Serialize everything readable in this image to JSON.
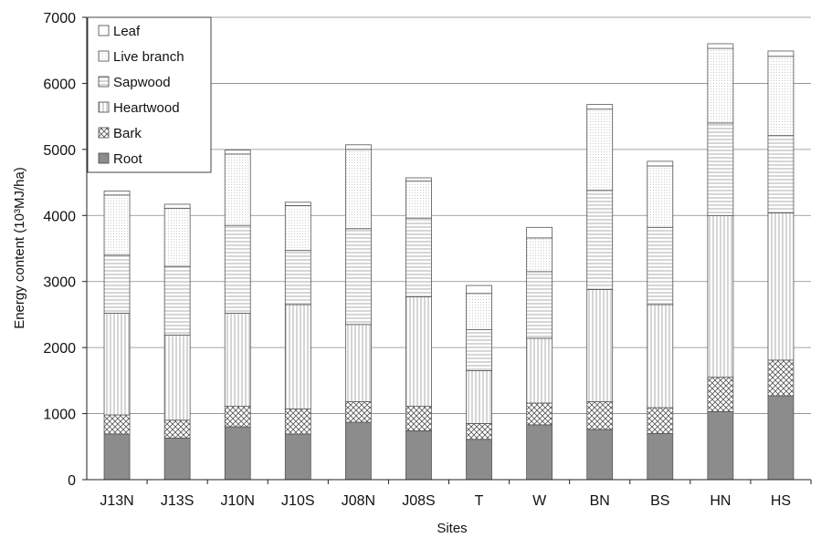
{
  "chart_data": {
    "type": "bar",
    "stacked": true,
    "categories": [
      "J13N",
      "J13S",
      "J10N",
      "J10S",
      "J08N",
      "J08S",
      "T",
      "W",
      "BN",
      "BS",
      "HN",
      "HS"
    ],
    "series": [
      {
        "name": "Root",
        "values": [
          690,
          630,
          800,
          690,
          870,
          740,
          610,
          830,
          760,
          700,
          1030,
          1270
        ],
        "color": "#8c8c8c"
      },
      {
        "name": "Bark",
        "values": [
          290,
          270,
          310,
          380,
          310,
          370,
          240,
          330,
          420,
          390,
          520,
          540
        ],
        "color": "#cfcfcf"
      },
      {
        "name": "Heartwood",
        "values": [
          1540,
          1290,
          1410,
          1580,
          1170,
          1660,
          800,
          980,
          1700,
          1560,
          2450,
          2230
        ],
        "color": "#e4e4e4"
      },
      {
        "name": "Sapwood",
        "values": [
          880,
          1040,
          1330,
          820,
          1450,
          1190,
          620,
          1010,
          1500,
          1170,
          1400,
          1170
        ],
        "color": "#e9e9e9"
      },
      {
        "name": "Live branch",
        "values": [
          910,
          880,
          1080,
          680,
          1200,
          560,
          550,
          510,
          1230,
          930,
          1130,
          1200
        ],
        "color": "#eeeeee"
      },
      {
        "name": "Leaf",
        "values": [
          60,
          60,
          60,
          50,
          70,
          50,
          120,
          160,
          70,
          70,
          70,
          80
        ],
        "color": "#fafafa"
      }
    ],
    "xlabel": "Sites",
    "ylabel": "Energy content (10³MJ/ha)",
    "ylim": [
      0,
      7000
    ],
    "yticks": [
      "0",
      "1000",
      "2000",
      "3000",
      "4000",
      "5000",
      "6000",
      "7000"
    ],
    "grid": true,
    "legend_position": "top-left"
  }
}
